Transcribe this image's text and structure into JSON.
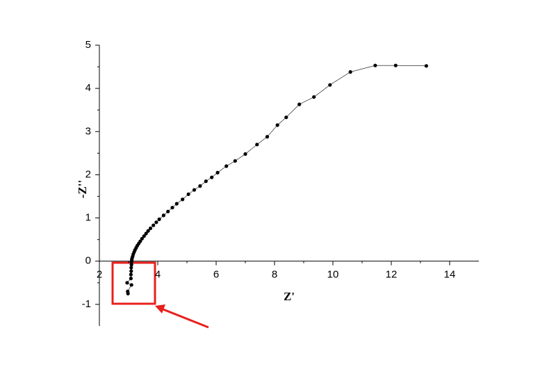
{
  "chart_data": {
    "type": "scatter-line",
    "x_label": "Z'",
    "y_label": "-Z''",
    "x": [
      13.2,
      12.15,
      11.45,
      10.6,
      9.9,
      9.35,
      8.85,
      8.4,
      8.1,
      7.75,
      7.4,
      7.0,
      6.65,
      6.35,
      6.05,
      5.85,
      5.65,
      5.45,
      5.25,
      5.05,
      4.85,
      4.65,
      4.5,
      4.35,
      4.2,
      4.05,
      3.95,
      3.85,
      3.75,
      3.67,
      3.6,
      3.53,
      3.46,
      3.4,
      3.35,
      3.3,
      3.26,
      3.22,
      3.19,
      3.16,
      3.14,
      3.12,
      3.11,
      3.1,
      3.1,
      3.09,
      3.09,
      3.08,
      3.08,
      2.95,
      3.1,
      2.97,
      2.98
    ],
    "values": [
      4.52,
      4.53,
      4.53,
      4.38,
      4.08,
      3.8,
      3.63,
      3.33,
      3.15,
      2.88,
      2.7,
      2.48,
      2.32,
      2.2,
      2.05,
      1.94,
      1.85,
      1.74,
      1.65,
      1.55,
      1.43,
      1.33,
      1.24,
      1.15,
      1.06,
      0.97,
      0.9,
      0.83,
      0.76,
      0.7,
      0.64,
      0.58,
      0.52,
      0.46,
      0.41,
      0.36,
      0.31,
      0.26,
      0.21,
      0.16,
      0.11,
      0.07,
      0.03,
      -0.02,
      -0.08,
      -0.15,
      -0.23,
      -0.31,
      -0.4,
      -0.5,
      -0.55,
      -0.7,
      -0.75
    ],
    "color": "#000000",
    "xlim": [
      2,
      15
    ],
    "ylim": [
      -1.5,
      5
    ],
    "xticks": [
      2,
      4,
      6,
      8,
      10,
      12,
      14
    ],
    "yticks": [
      -1,
      0,
      1,
      2,
      3,
      4,
      5
    ]
  }
}
